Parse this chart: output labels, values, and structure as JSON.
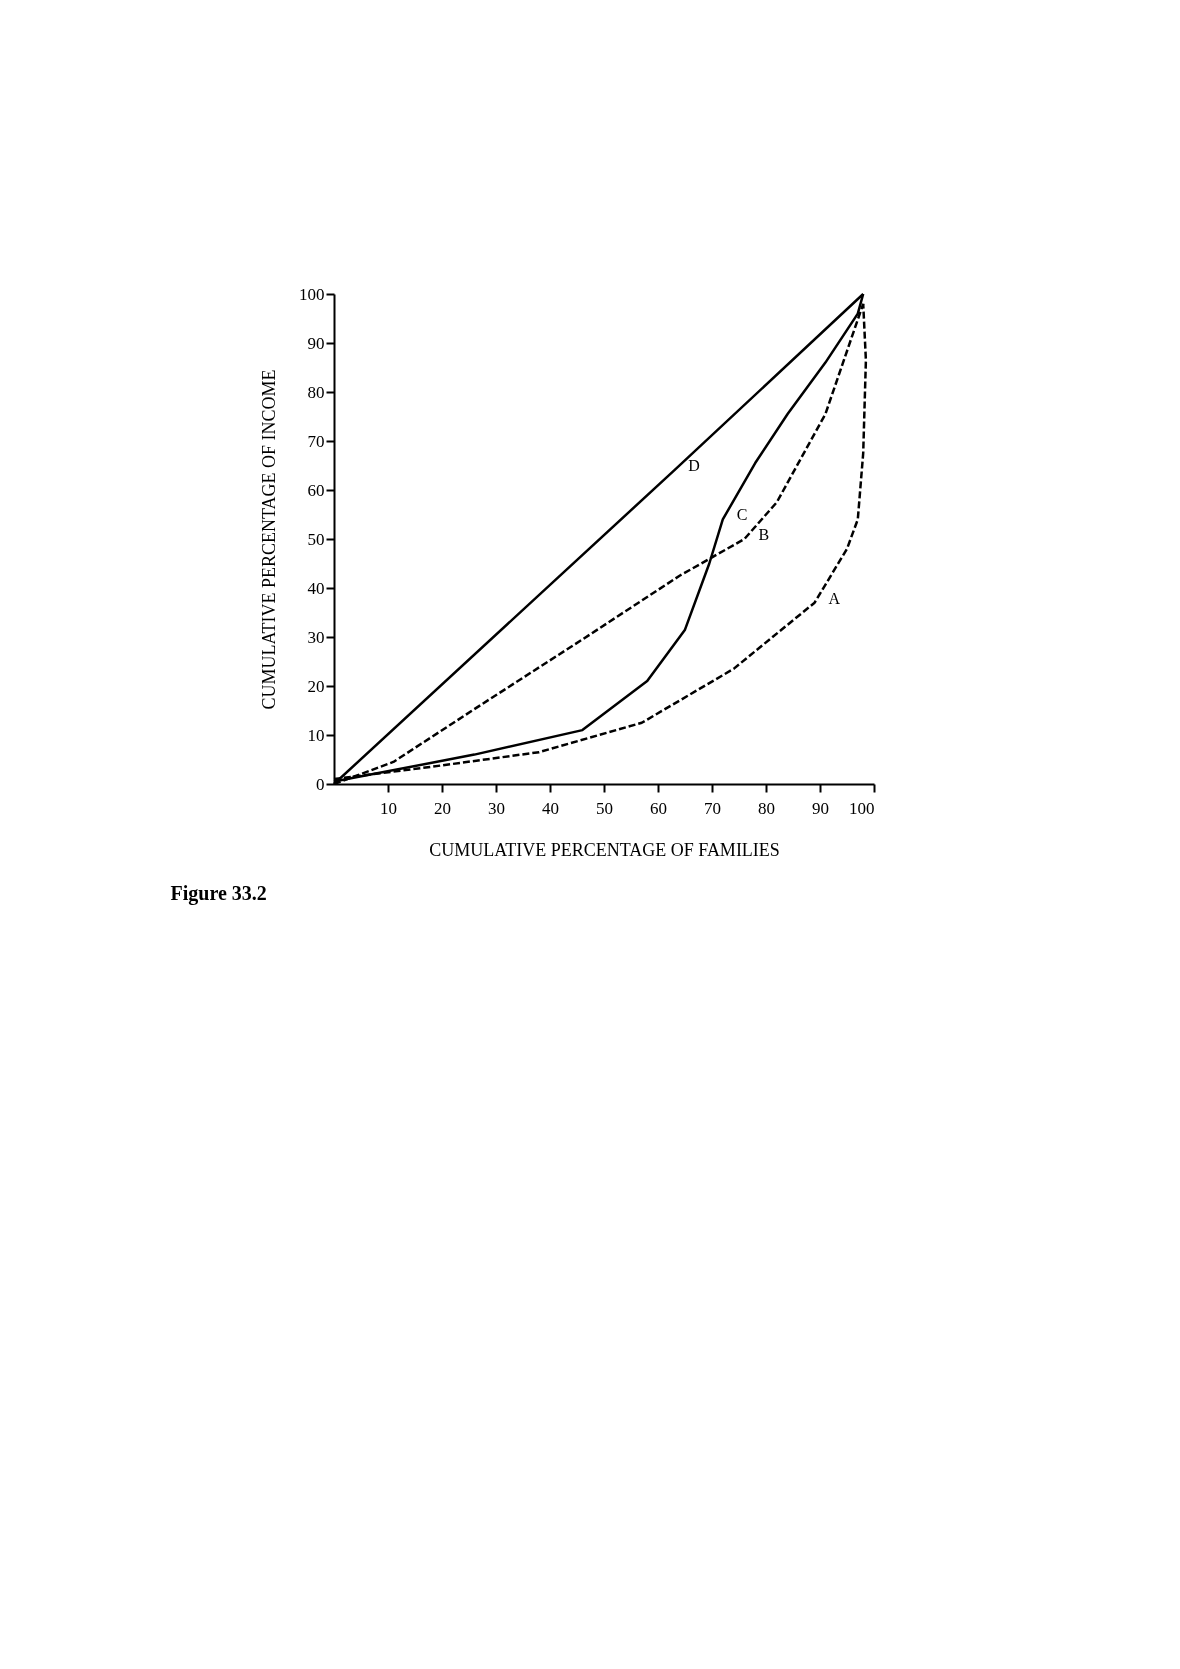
{
  "chart_data": {
    "type": "line",
    "title": "Figure 33.2",
    "xlabel": "CUMULATIVE PERCENTAGE OF FAMILIES",
    "ylabel": "CUMULATIVE PERCENTAGE OF INCOME",
    "xlim": [
      0,
      100
    ],
    "ylim": [
      0,
      100
    ],
    "xticks": [
      10,
      20,
      30,
      40,
      50,
      60,
      70,
      80,
      90,
      100
    ],
    "yticks": [
      0,
      10,
      20,
      30,
      40,
      50,
      60,
      70,
      80,
      90,
      100
    ],
    "grid": false,
    "series": [
      {
        "name": "D",
        "color": "#000000",
        "line_style": "solid",
        "x": [
          0,
          63,
          98
        ],
        "values": [
          0,
          64,
          100
        ]
      },
      {
        "name": "C",
        "color": "#000000",
        "line_style": "solid",
        "x": [
          0,
          26,
          46,
          58,
          65,
          69.5,
          72,
          78,
          84,
          91,
          97,
          98
        ],
        "values": [
          0.5,
          6,
          11,
          21,
          31.5,
          45,
          54,
          65.5,
          75.5,
          86,
          96,
          100
        ]
      },
      {
        "name": "B",
        "color": "#000000",
        "line_style": "dashed",
        "x": [
          0,
          11,
          27,
          46,
          64,
          76,
          82,
          84,
          91,
          98
        ],
        "values": [
          0,
          4.5,
          16,
          29.5,
          42.5,
          50,
          57.5,
          61.5,
          75.5,
          98
        ]
      },
      {
        "name": "A",
        "color": "#000000",
        "line_style": "dashed",
        "x": [
          0,
          18,
          38,
          57,
          74,
          89,
          95,
          97,
          98,
          98.5,
          98
        ],
        "values": [
          1,
          3.5,
          6.5,
          12.5,
          23.5,
          37,
          48,
          54,
          67.5,
          86.5,
          98
        ]
      }
    ]
  }
}
